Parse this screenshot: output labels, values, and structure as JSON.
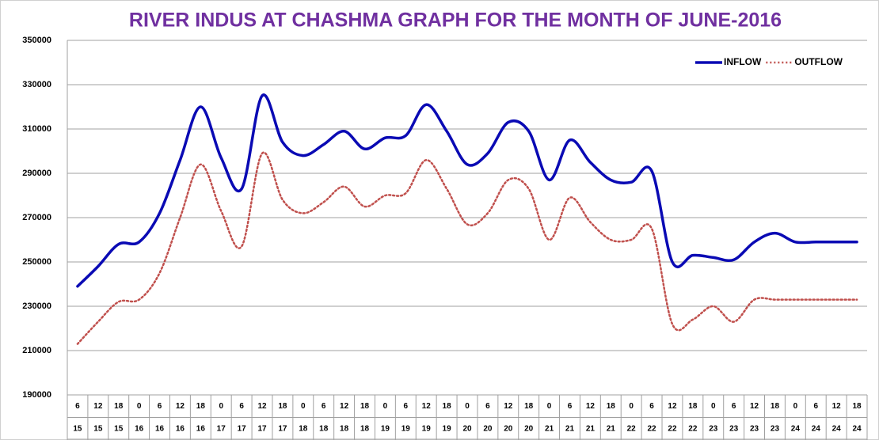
{
  "chart_data": {
    "type": "line",
    "title": "RIVER INDUS AT  CHASHMA   GRAPH  FOR THE MONTH OF JUNE-2016",
    "categories": [
      [
        6,
        15
      ],
      [
        12,
        15
      ],
      [
        18,
        15
      ],
      [
        0,
        16
      ],
      [
        6,
        16
      ],
      [
        12,
        16
      ],
      [
        18,
        16
      ],
      [
        0,
        17
      ],
      [
        6,
        17
      ],
      [
        12,
        17
      ],
      [
        18,
        17
      ],
      [
        0,
        18
      ],
      [
        6,
        18
      ],
      [
        12,
        18
      ],
      [
        18,
        18
      ],
      [
        0,
        19
      ],
      [
        6,
        19
      ],
      [
        12,
        19
      ],
      [
        18,
        19
      ],
      [
        0,
        20
      ],
      [
        6,
        20
      ],
      [
        12,
        20
      ],
      [
        18,
        20
      ],
      [
        0,
        21
      ],
      [
        6,
        21
      ],
      [
        12,
        21
      ],
      [
        18,
        21
      ],
      [
        0,
        22
      ],
      [
        6,
        22
      ],
      [
        12,
        22
      ],
      [
        18,
        22
      ],
      [
        0,
        23
      ],
      [
        6,
        23
      ],
      [
        12,
        23
      ],
      [
        18,
        23
      ],
      [
        0,
        24
      ],
      [
        6,
        24
      ],
      [
        12,
        24
      ],
      [
        18,
        24
      ]
    ],
    "series": [
      {
        "name": "INFLOW",
        "color": "#0a0ab4",
        "dash": "solid",
        "values": [
          239000,
          248000,
          258000,
          259000,
          272000,
          296000,
          320000,
          297000,
          283000,
          325000,
          304000,
          298000,
          303000,
          309000,
          301000,
          306000,
          307000,
          321000,
          309000,
          294000,
          299000,
          313000,
          309000,
          287000,
          305000,
          295000,
          287000,
          286000,
          291000,
          250000,
          253000,
          252000,
          251000,
          259000,
          263000,
          259000,
          259000,
          259000,
          259000
        ]
      },
      {
        "name": "OUTFLOW",
        "color": "#c0504d",
        "dash": "dotted",
        "values": [
          213000,
          223000,
          232000,
          233000,
          245000,
          270000,
          294000,
          273000,
          257000,
          299000,
          278000,
          272000,
          277000,
          284000,
          275000,
          280000,
          281000,
          296000,
          283000,
          267000,
          272000,
          287000,
          283000,
          260000,
          279000,
          268000,
          260000,
          260000,
          265000,
          222000,
          224000,
          230000,
          223000,
          233000,
          233000,
          233000,
          233000,
          233000,
          233000
        ]
      }
    ],
    "ylim": [
      190000,
      350000
    ],
    "yticks": [
      190000,
      210000,
      230000,
      250000,
      270000,
      290000,
      310000,
      330000,
      350000
    ],
    "grid": true,
    "legend": "top-right"
  }
}
